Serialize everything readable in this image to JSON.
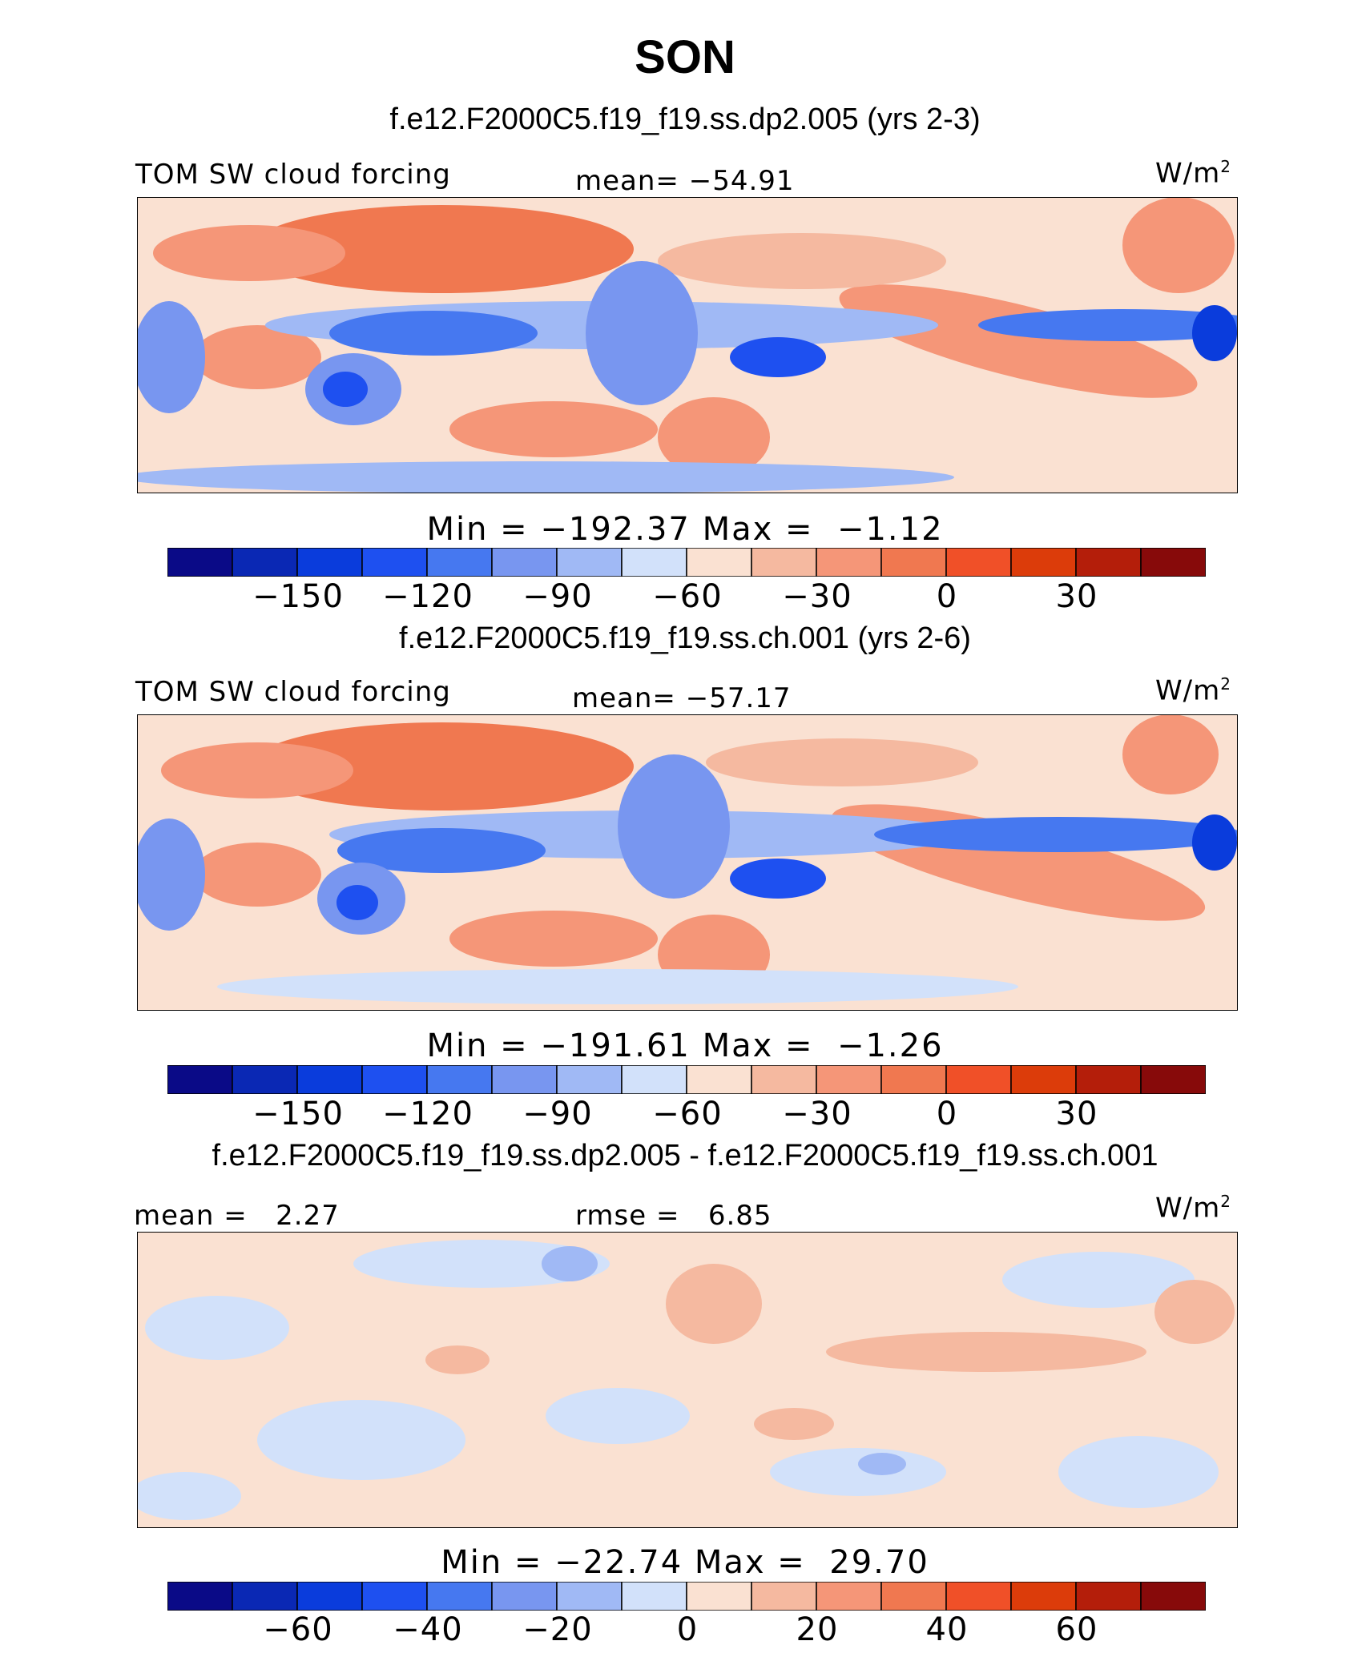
{
  "main_title": "SON",
  "panels": [
    {
      "title": "f.e12.F2000C5.f19_f19.ss.dp2.005 (yrs 2-3)",
      "left_label": "TOM SW cloud forcing",
      "center_label": "mean= −54.91",
      "unit": "W/m",
      "unit_sup": "2",
      "minmax": "Min = −192.37 Max =  −1.12",
      "colorbar_ticks": [
        "−150",
        "−120",
        "−90",
        "−60",
        "−30",
        "0",
        "30"
      ]
    },
    {
      "title": "f.e12.F2000C5.f19_f19.ss.ch.001 (yrs 2-6)",
      "left_label": "TOM SW cloud forcing",
      "center_label": "mean= −57.17",
      "unit": "W/m",
      "unit_sup": "2",
      "minmax": "Min = −191.61 Max =  −1.26",
      "colorbar_ticks": [
        "−150",
        "−120",
        "−90",
        "−60",
        "−30",
        "0",
        "30"
      ]
    },
    {
      "title": "f.e12.F2000C5.f19_f19.ss.dp2.005 - f.e12.F2000C5.f19_f19.ss.ch.001",
      "left_label": "mean =   2.27",
      "center_label": "rmse =   6.85",
      "unit": "W/m",
      "unit_sup": "2",
      "minmax": "Min = −22.74 Max =  29.70",
      "colorbar_ticks": [
        "−60",
        "−40",
        "−20",
        "0",
        "20",
        "40",
        "60"
      ]
    }
  ],
  "colorbar_colors": [
    "#0a0a87",
    "#0a28b4",
    "#0a3cdc",
    "#1e50f0",
    "#4678f0",
    "#7896f0",
    "#a0b9f5",
    "#d2e1fa",
    "#fae1d2",
    "#f5b9a0",
    "#f59678",
    "#f07850",
    "#f05028",
    "#dc3c0a",
    "#b41e0a",
    "#870a0a"
  ],
  "chart_data": [
    {
      "type": "heatmap",
      "title": "f.e12.F2000C5.f19_f19.ss.dp2.005 (yrs 2-3)",
      "variable": "TOM SW cloud forcing",
      "units": "W/m2",
      "mean": -54.91,
      "min": -192.37,
      "max": -1.12,
      "colorbar_levels": [
        -165,
        -150,
        -135,
        -120,
        -105,
        -90,
        -75,
        -60,
        -45,
        -30,
        -15,
        0,
        15,
        30,
        45
      ],
      "colorbar_tick_values": [
        -150,
        -120,
        -90,
        -60,
        -30,
        0,
        30
      ]
    },
    {
      "type": "heatmap",
      "title": "f.e12.F2000C5.f19_f19.ss.ch.001 (yrs 2-6)",
      "variable": "TOM SW cloud forcing",
      "units": "W/m2",
      "mean": -57.17,
      "min": -191.61,
      "max": -1.26,
      "colorbar_levels": [
        -165,
        -150,
        -135,
        -120,
        -105,
        -90,
        -75,
        -60,
        -45,
        -30,
        -15,
        0,
        15,
        30,
        45
      ],
      "colorbar_tick_values": [
        -150,
        -120,
        -90,
        -60,
        -30,
        0,
        30
      ]
    },
    {
      "type": "heatmap",
      "title": "f.e12.F2000C5.f19_f19.ss.dp2.005 - f.e12.F2000C5.f19_f19.ss.ch.001",
      "units": "W/m2",
      "mean": 2.27,
      "rmse": 6.85,
      "min": -22.74,
      "max": 29.7,
      "colorbar_levels": [
        -70,
        -60,
        -50,
        -40,
        -30,
        -20,
        -10,
        0,
        10,
        20,
        30,
        40,
        50,
        60,
        70
      ],
      "colorbar_tick_values": [
        -60,
        -40,
        -20,
        0,
        20,
        40,
        60
      ]
    }
  ]
}
